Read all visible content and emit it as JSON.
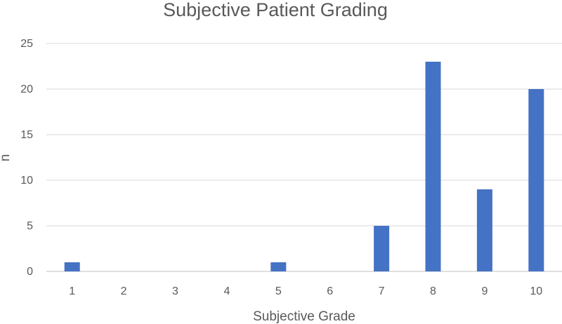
{
  "chart_data": {
    "type": "bar",
    "title": "Subjective Patient Grading",
    "xlabel": "Subjective Grade",
    "ylabel": "n",
    "categories": [
      "1",
      "2",
      "3",
      "4",
      "5",
      "6",
      "7",
      "8",
      "9",
      "10"
    ],
    "values": [
      1,
      0,
      0,
      0,
      1,
      0,
      5,
      23,
      9,
      20
    ],
    "ylim": [
      0,
      25
    ],
    "yticks": [
      0,
      5,
      10,
      15,
      20,
      25
    ],
    "grid": true,
    "legend": "none",
    "bar_color": "#4472c4"
  }
}
